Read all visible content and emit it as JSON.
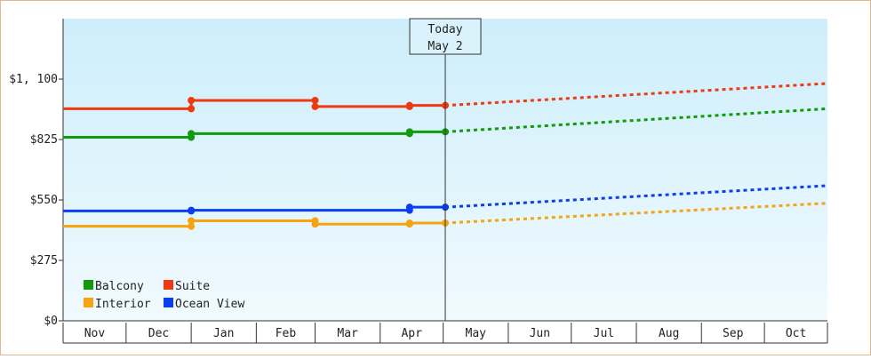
{
  "chart_data": {
    "type": "line",
    "title": "",
    "xlabel": "",
    "ylabel": "",
    "ylim": [
      0,
      1375
    ],
    "y_ticks": [
      "$0",
      "$275",
      "$550",
      "$825",
      "$1, 100"
    ],
    "y_tick_values": [
      0,
      275,
      550,
      825,
      1100
    ],
    "x_tick_labels": [
      "Nov",
      "Dec",
      "Jan",
      "Feb",
      "Mar",
      "Apr",
      "May",
      "Jun",
      "Jul",
      "Aug",
      "Sep",
      "Oct"
    ],
    "today_marker": {
      "line1": "Today",
      "line2": "May 2",
      "date": "2023-05-02"
    },
    "legend_placement": "bottom-left",
    "background_gradient": [
      "#cdeefb",
      "#f1fafe"
    ],
    "series": [
      {
        "name": "Suite",
        "color": "#ef3a10",
        "history": [
          [
            "2022-11-01",
            965
          ],
          [
            "2023-01-01",
            965
          ],
          [
            "2023-01-01",
            1003
          ],
          [
            "2023-03-01",
            1003
          ],
          [
            "2023-03-01",
            975
          ],
          [
            "2023-04-15",
            975
          ],
          [
            "2023-04-15",
            980
          ],
          [
            "2023-05-02",
            980
          ]
        ],
        "forecast": [
          [
            "2023-05-02",
            980
          ],
          [
            "2023-10-31",
            1080
          ]
        ]
      },
      {
        "name": "Balcony",
        "color": "#129a0c",
        "history": [
          [
            "2022-11-01",
            835
          ],
          [
            "2023-01-01",
            835
          ],
          [
            "2023-01-01",
            852
          ],
          [
            "2023-04-15",
            852
          ],
          [
            "2023-04-15",
            860
          ],
          [
            "2023-05-02",
            860
          ]
        ],
        "forecast": [
          [
            "2023-05-02",
            860
          ],
          [
            "2023-10-31",
            965
          ]
        ]
      },
      {
        "name": "Ocean View",
        "color": "#0b3ef2",
        "history": [
          [
            "2022-11-01",
            500
          ],
          [
            "2023-01-01",
            500
          ],
          [
            "2023-01-01",
            503
          ],
          [
            "2023-04-15",
            503
          ],
          [
            "2023-04-15",
            517
          ],
          [
            "2023-05-02",
            517
          ]
        ],
        "forecast": [
          [
            "2023-05-02",
            517
          ],
          [
            "2023-10-31",
            615
          ]
        ]
      },
      {
        "name": "Interior",
        "color": "#f5a30e",
        "history": [
          [
            "2022-11-01",
            430
          ],
          [
            "2023-01-01",
            430
          ],
          [
            "2023-01-01",
            455
          ],
          [
            "2023-03-01",
            455
          ],
          [
            "2023-03-01",
            440
          ],
          [
            "2023-04-15",
            440
          ],
          [
            "2023-04-15",
            445
          ],
          [
            "2023-05-02",
            445
          ]
        ],
        "forecast": [
          [
            "2023-05-02",
            445
          ],
          [
            "2023-10-31",
            535
          ]
        ]
      }
    ]
  }
}
